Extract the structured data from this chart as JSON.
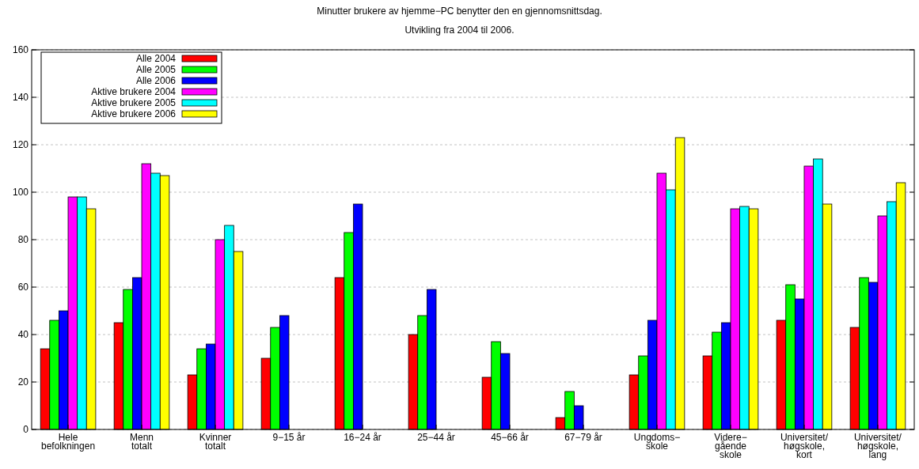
{
  "chart_data": {
    "type": "bar",
    "title": "Minutter brukere av  hjemme−PC benytter den en gjennomsnittsdag.",
    "subtitle": "Utvikling fra 2004 til 2006.",
    "categories": [
      "Hele\nbefolkningen",
      "Menn\ntotalt",
      "Kvinner\ntotalt",
      "9−15 år",
      "16−24 år",
      "25−44 år",
      "45−66 år",
      "67−79 år",
      "Ungdoms−\nskole",
      "Videre−\ngående\nskole",
      "Universitet/\nhøgskole,\nkort",
      "Universitet/\nhøgskole,\nlang"
    ],
    "series": [
      {
        "name": "Alle 2004",
        "color": "#ff0000",
        "values": [
          34,
          45,
          23,
          30,
          64,
          40,
          22,
          5,
          23,
          31,
          46,
          43
        ]
      },
      {
        "name": "Alle 2005",
        "color": "#00ff00",
        "values": [
          46,
          59,
          34,
          43,
          83,
          48,
          37,
          16,
          31,
          41,
          61,
          64
        ]
      },
      {
        "name": "Alle 2006",
        "color": "#0000ff",
        "values": [
          50,
          64,
          36,
          48,
          95,
          59,
          32,
          10,
          46,
          45,
          55,
          62
        ]
      },
      {
        "name": "Aktive brukere 2004",
        "color": "#ff00ff",
        "values": [
          98,
          112,
          80,
          0,
          0,
          0,
          0,
          0,
          108,
          93,
          111,
          90
        ]
      },
      {
        "name": "Aktive brukere 2005",
        "color": "#00ffff",
        "values": [
          98,
          108,
          86,
          0,
          0,
          0,
          0,
          0,
          101,
          94,
          114,
          96
        ]
      },
      {
        "name": "Aktive brukere 2006",
        "color": "#ffff00",
        "values": [
          93,
          107,
          75,
          0,
          0,
          0,
          0,
          0,
          123,
          93,
          95,
          104
        ]
      }
    ],
    "ylim": [
      0,
      160
    ],
    "yticks": [
      0,
      20,
      40,
      60,
      80,
      100,
      120,
      140,
      160
    ],
    "grid": "y",
    "legend": "top left"
  }
}
